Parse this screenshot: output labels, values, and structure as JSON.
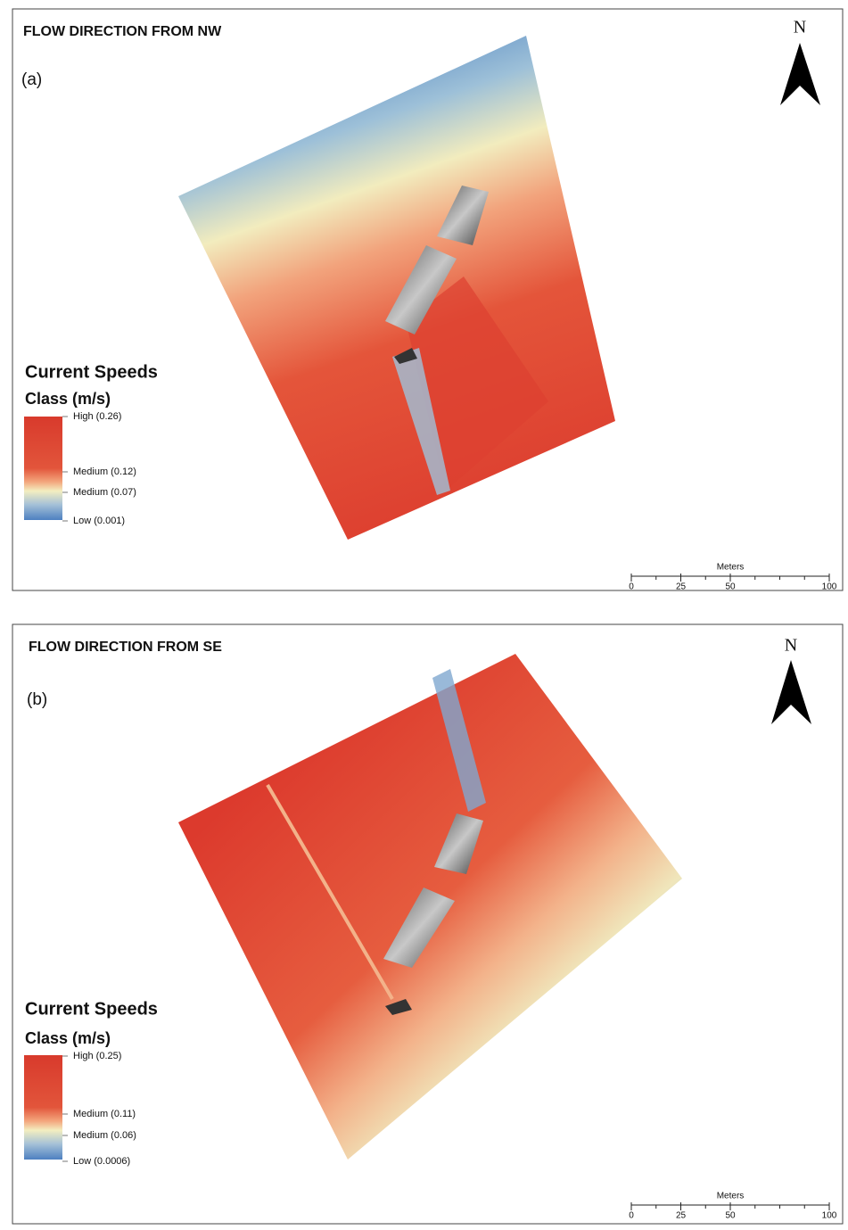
{
  "panels": [
    {
      "title": "FLOW DIRECTION FROM NW",
      "label": "(a)",
      "north": "N",
      "legend": {
        "title": "Current Speeds",
        "subtitle": "Class (m/s)",
        "entries": [
          "High (0.26)",
          "Medium (0.12)",
          "Medium (0.07)",
          "Low (0.001)"
        ]
      },
      "scale": {
        "unit": "Meters",
        "ticks": [
          0,
          25,
          50,
          100
        ]
      }
    },
    {
      "title": "FLOW DIRECTION FROM SE",
      "label": "(b)",
      "north": "N",
      "legend": {
        "title": "Current Speeds",
        "subtitle": "Class (m/s)",
        "entries": [
          "High (0.25)",
          "Medium (0.11)",
          "Medium (0.06)",
          "Low (0.0006)"
        ]
      },
      "scale": {
        "unit": "Meters",
        "ticks": [
          0,
          25,
          50,
          100
        ]
      }
    }
  ]
}
